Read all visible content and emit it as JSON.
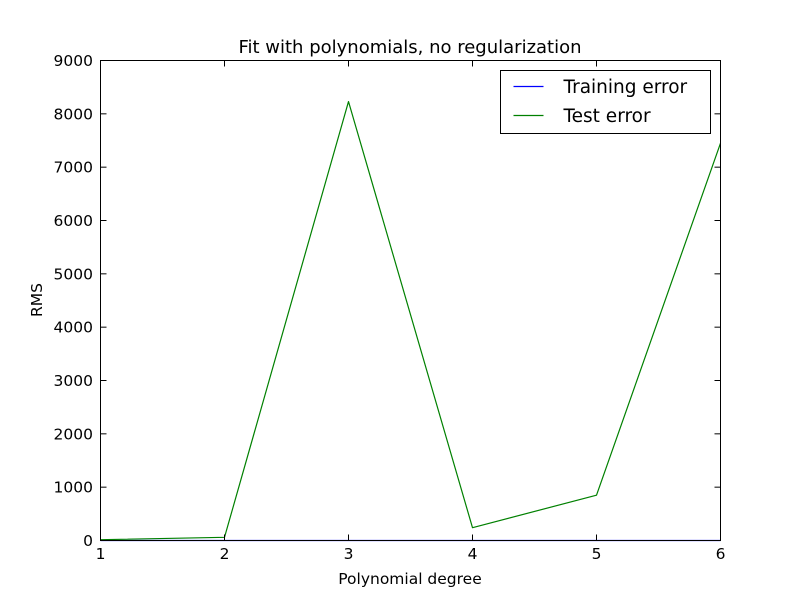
{
  "chart_data": {
    "type": "line",
    "title": "Fit with polynomials, no regularization",
    "xlabel": "Polynomial degree",
    "ylabel": "RMS",
    "x": [
      1,
      2,
      3,
      4,
      5,
      6
    ],
    "xlim": [
      1,
      6
    ],
    "ylim": [
      0,
      9000
    ],
    "xticks": [
      1,
      2,
      3,
      4,
      5,
      6
    ],
    "yticks": [
      0,
      1000,
      2000,
      3000,
      4000,
      5000,
      6000,
      7000,
      8000,
      9000
    ],
    "grid": false,
    "legend_position": "upper right",
    "series": [
      {
        "name": "Training error",
        "color": "#0000ff",
        "values": [
          0.5,
          0.2,
          0.1,
          0.05,
          0.02,
          0.01
        ]
      },
      {
        "name": "Test error",
        "color": "#008000",
        "values": [
          15,
          60,
          8230,
          240,
          850,
          7450
        ]
      }
    ]
  }
}
